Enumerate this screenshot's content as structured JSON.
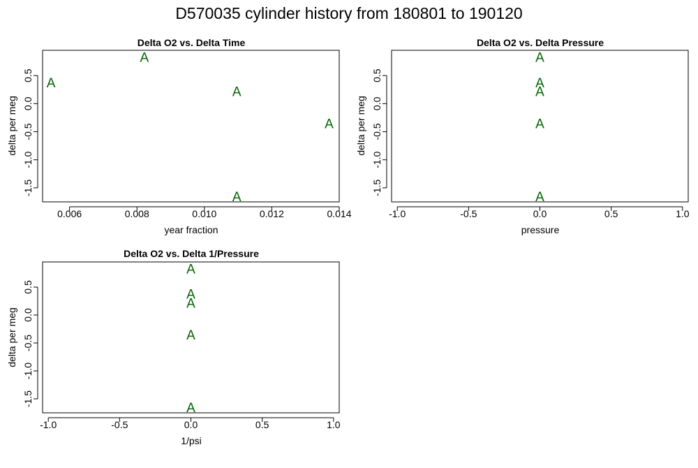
{
  "page_title": "D570035   cylinder history from  180801  to  190120",
  "marker_color": "#006400",
  "chart_data": [
    {
      "type": "scatter",
      "title": "Delta O2 vs. Delta Time",
      "xlabel": "year fraction",
      "ylabel": "delta per meg",
      "marker": "A",
      "xlim": [
        0.0052,
        0.014
      ],
      "ylim": [
        -1.75,
        0.95
      ],
      "xticks": [
        0.006,
        0.008,
        0.01,
        0.012,
        0.014
      ],
      "xtick_labels": [
        "0.006",
        "0.008",
        "0.010",
        "0.012",
        "0.014"
      ],
      "yticks": [
        -1.5,
        -1.0,
        -0.5,
        0.0,
        0.5
      ],
      "ytick_labels": [
        "-1.5",
        "-1.0",
        "-0.5",
        "0.0",
        "0.5"
      ],
      "points": [
        {
          "x": 0.00545,
          "y": 0.38
        },
        {
          "x": 0.00822,
          "y": 0.83
        },
        {
          "x": 0.01096,
          "y": 0.22
        },
        {
          "x": 0.0137,
          "y": -0.35
        },
        {
          "x": 0.01096,
          "y": -1.65
        }
      ]
    },
    {
      "type": "scatter",
      "title": "Delta O2 vs. Delta Pressure",
      "xlabel": "pressure",
      "ylabel": "delta per meg",
      "marker": "A",
      "xlim": [
        -1.04,
        1.04
      ],
      "ylim": [
        -1.75,
        0.95
      ],
      "xticks": [
        -1.0,
        -0.5,
        0.0,
        0.5,
        1.0
      ],
      "xtick_labels": [
        "-1.0",
        "-0.5",
        "0.0",
        "0.5",
        "1.0"
      ],
      "yticks": [
        -1.5,
        -1.0,
        -0.5,
        0.0,
        0.5
      ],
      "ytick_labels": [
        "-1.5",
        "-1.0",
        "-0.5",
        "0.0",
        "0.5"
      ],
      "points": [
        {
          "x": 0.0,
          "y": 0.83
        },
        {
          "x": 0.0,
          "y": 0.38
        },
        {
          "x": 0.0,
          "y": 0.22
        },
        {
          "x": 0.0,
          "y": -0.35
        },
        {
          "x": 0.0,
          "y": -1.65
        }
      ]
    },
    {
      "type": "scatter",
      "title": "Delta O2 vs. Delta 1/Pressure",
      "xlabel": "1/psi",
      "ylabel": "delta per meg",
      "marker": "A",
      "xlim": [
        -1.04,
        1.04
      ],
      "ylim": [
        -1.75,
        0.95
      ],
      "xticks": [
        -1.0,
        -0.5,
        0.0,
        0.5,
        1.0
      ],
      "xtick_labels": [
        "-1.0",
        "-0.5",
        "0.0",
        "0.5",
        "1.0"
      ],
      "yticks": [
        -1.5,
        -1.0,
        -0.5,
        0.0,
        0.5
      ],
      "ytick_labels": [
        "-1.5",
        "-1.0",
        "-0.5",
        "0.0",
        "0.5"
      ],
      "points": [
        {
          "x": 0.0,
          "y": 0.83
        },
        {
          "x": 0.0,
          "y": 0.38
        },
        {
          "x": 0.0,
          "y": 0.22
        },
        {
          "x": 0.0,
          "y": -0.35
        },
        {
          "x": 0.0,
          "y": -1.65
        }
      ]
    }
  ]
}
